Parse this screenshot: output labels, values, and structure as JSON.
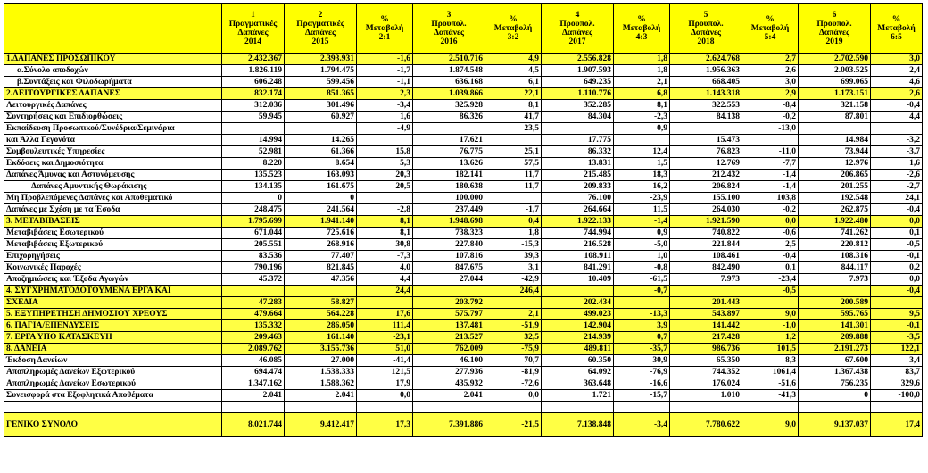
{
  "headers": [
    "",
    "1\nΠραγματικές\nΔαπάνες\n2014",
    "2\nΠραγματικές\nΔαπάνες\n2015",
    "%\nΜεταβολή\n2:1",
    "3\nΠρουπολ.\nΔαπάνες\n2016",
    "%\nΜεταβολή\n3:2",
    "4\nΠρουπολ.\nΔαπάνες\n2017",
    "%\nΜεταβολή\n4:3",
    "5\nΠρουπολ.\nΔαπάνες\n2018",
    "%\nΜεταβολή\n5:4",
    "6\nΠρουπολ.\nΔαπάνες\n2019",
    "%\nΜεταβολή\n6:5"
  ],
  "rows": [
    {
      "h": true,
      "c": [
        "1.ΔΑΠΑΝΕΣ ΠΡΟΣΩΠΙΚΟΥ",
        "2.432.367",
        "2.393.931",
        "-1,6",
        "2.510.716",
        "4,9",
        "2.556.828",
        "1,8",
        "2.624.768",
        "2,7",
        "2.702.590",
        "3,0"
      ]
    },
    {
      "ind": 1,
      "c": [
        "α.Σύνολο αποδοχών",
        "1.826.119",
        "1.794.475",
        "-1,7",
        "1.874.548",
        "4,5",
        "1.907.593",
        "1,8",
        "1.956.363",
        "2,6",
        "2.003.525",
        "2,4"
      ]
    },
    {
      "ind": 1,
      "c": [
        "β.Συντάξεις και Φιλοδωρήματα",
        "606.248",
        "599.456",
        "-1,1",
        "636.168",
        "6,1",
        "649.235",
        "2,1",
        "668.405",
        "3,0",
        "699.065",
        "4,6"
      ]
    },
    {
      "h": true,
      "c": [
        "2.ΛΕΙΤΟΥΡΓΙΚΕΣ ΔΑΠΑΝΕΣ",
        "832.174",
        "851.365",
        "2,3",
        "1.039.866",
        "22,1",
        "1.110.776",
        "6,8",
        "1.143.318",
        "2,9",
        "1.173.151",
        "2,6"
      ]
    },
    {
      "c": [
        "Λειτουργικές Δαπάνες",
        "312.036",
        "301.496",
        "-3,4",
        "325.928",
        "8,1",
        "352.285",
        "8,1",
        "322.553",
        "-8,4",
        "321.158",
        "-0,4"
      ]
    },
    {
      "c": [
        "Συντηρήσεις και Επιδιορθώσεις",
        "59.945",
        "60.927",
        "1,6",
        "86.326",
        "41,7",
        "84.304",
        "-2,3",
        "84.138",
        "-0,2",
        "87.801",
        "4,4"
      ]
    },
    {
      "c": [
        "Εκπαίδευση Προσωπικού/Συνέδρια/Σεμινάρια",
        "",
        "",
        "-4,9",
        "",
        "23,5",
        "",
        "0,9",
        "",
        "-13,0",
        "",
        ""
      ]
    },
    {
      "c": [
        "και Άλλα Γεγονότα",
        "14.994",
        "14.265",
        "",
        "17.621",
        "",
        "17.775",
        "",
        "15.473",
        "",
        "14.984",
        "-3,2"
      ]
    },
    {
      "c": [
        "Συμβουλευτικές Υπηρεσίες",
        "52.981",
        "61.366",
        "15,8",
        "76.775",
        "25,1",
        "86.332",
        "12,4",
        "76.823",
        "-11,0",
        "73.944",
        "-3,7"
      ]
    },
    {
      "c": [
        "Εκδόσεις και Δημοσιότητα",
        "8.220",
        "8.654",
        "5,3",
        "13.626",
        "57,5",
        "13.831",
        "1,5",
        "12.769",
        "-7,7",
        "12.976",
        "1,6"
      ]
    },
    {
      "c": [
        "Δαπάνες Άμυνας και Αστυνόμευσης",
        "135.523",
        "163.093",
        "20,3",
        "182.141",
        "11,7",
        "215.485",
        "18,3",
        "212.432",
        "-1,4",
        "206.865",
        "-2,6"
      ]
    },
    {
      "ind": 2,
      "c": [
        "Δαπάνες Αμυντικής Θωράκισης",
        "134.135",
        "161.675",
        "20,5",
        "180.638",
        "11,7",
        "209.833",
        "16,2",
        "206.824",
        "-1,4",
        "201.255",
        "-2,7"
      ]
    },
    {
      "c": [
        "Μη Προβλεπόμενες Δαπάνες και Αποθεματικό",
        "0",
        "0",
        "",
        "100.000",
        "",
        "76.100",
        "-23,9",
        "155.100",
        "103,8",
        "192.548",
        "24,1"
      ]
    },
    {
      "c": [
        "Δαπάνες με Σχέση με τα Έσοδα",
        "248.475",
        "241.564",
        "-2,8",
        "237.449",
        "-1,7",
        "264.664",
        "11,5",
        "264.030",
        "-0,2",
        "262.875",
        "-0,4"
      ]
    },
    {
      "h": true,
      "c": [
        "3. ΜΕΤΑΒΙΒΑΣΕΙΣ",
        "1.795.699",
        "1.941.140",
        "8,1",
        "1.948.698",
        "0,4",
        "1.922.133",
        "-1,4",
        "1.921.590",
        "0,0",
        "1.922.480",
        "0,0"
      ]
    },
    {
      "c": [
        "Μεταβιβάσεις Εσωτερικού",
        "671.044",
        "725.616",
        "8,1",
        "738.323",
        "1,8",
        "744.994",
        "0,9",
        "740.822",
        "-0,6",
        "741.262",
        "0,1"
      ]
    },
    {
      "c": [
        "Μεταβιβάσεις Εξωτερικού",
        "205.551",
        "268.916",
        "30,8",
        "227.840",
        "-15,3",
        "216.528",
        "-5,0",
        "221.844",
        "2,5",
        "220.812",
        "-0,5"
      ]
    },
    {
      "c": [
        "Επιχορηγήσεις",
        "83.536",
        "77.407",
        "-7,3",
        "107.816",
        "39,3",
        "108.911",
        "1,0",
        "108.461",
        "-0,4",
        "108.316",
        "-0,1"
      ]
    },
    {
      "c": [
        "Κοινωνικές Παροχές",
        "790.196",
        "821.845",
        "4,0",
        "847.675",
        "3,1",
        "841.291",
        "-0,8",
        "842.490",
        "0,1",
        "844.117",
        "0,2"
      ]
    },
    {
      "c": [
        "Αποζημιώσεις και Έξοδα Αγωγών",
        "45.372",
        "47.356",
        "4,4",
        "27.044",
        "-42,9",
        "10.409",
        "-61,5",
        "7.973",
        "-23,4",
        "7.973",
        "0,0"
      ]
    },
    {
      "h": true,
      "c": [
        "4. ΣΥΓΧΡΗΜΑΤΟΔΟΤΟΥΜΕΝΑ ΕΡΓΑ ΚΑΙ",
        "",
        "",
        "24,4",
        "",
        "246,4",
        "",
        "-0,7",
        "",
        "-0,5",
        "",
        "-0,4"
      ]
    },
    {
      "h": true,
      "c": [
        "ΣΧΕΔΙΑ",
        "47.283",
        "58.827",
        "",
        "203.792",
        "",
        "202.434",
        "",
        "201.443",
        "",
        "200.589",
        ""
      ]
    },
    {
      "h": true,
      "c": [
        "5. ΕΞΥΠΗΡΕΤΗΣΗ ΔΗΜΟΣΙΟΥ ΧΡΕΟΥΣ",
        "479.664",
        "564.228",
        "17,6",
        "575.797",
        "2,1",
        "499.023",
        "-13,3",
        "543.897",
        "9,0",
        "595.765",
        "9,5"
      ]
    },
    {
      "h": true,
      "c": [
        "6. ΠΑΓΙΑ/ΕΠΕΝΔΥΣΕΙΣ",
        "135.332",
        "286.050",
        "111,4",
        "137.481",
        "-51,9",
        "142.904",
        "3,9",
        "141.442",
        "-1,0",
        "141.301",
        "-0,1"
      ]
    },
    {
      "h": true,
      "c": [
        "7. ΕΡΓΑ ΥΠΟ ΚΑΤΑΣΚΕΥΗ",
        "209.463",
        "161.140",
        "-23,1",
        "213.527",
        "32,5",
        "214.939",
        "0,7",
        "217.428",
        "1,2",
        "209.888",
        "-3,5"
      ]
    },
    {
      "h": true,
      "c": [
        "8. ΔΑΝΕΙΑ",
        "2.089.762",
        "3.155.736",
        "51,0",
        "762.009",
        "-75,9",
        "489.811",
        "-35,7",
        "986.736",
        "101,5",
        "2.191.273",
        "122,1"
      ]
    },
    {
      "c": [
        "Έκδοση Δανείων",
        "46.085",
        "27.000",
        "-41,4",
        "46.100",
        "70,7",
        "60.350",
        "30,9",
        "65.350",
        "8,3",
        "67.600",
        "3,4"
      ]
    },
    {
      "c": [
        "Αποπληρωμές Δανείων Εξωτερικού",
        "694.474",
        "1.538.333",
        "121,5",
        "277.936",
        "-81,9",
        "64.092",
        "-76,9",
        "744.352",
        "1061,4",
        "1.367.438",
        "83,7"
      ]
    },
    {
      "c": [
        "Αποπληρωμές Δανείων Εσωτερικού",
        "1.347.162",
        "1.588.362",
        "17,9",
        "435.932",
        "-72,6",
        "363.648",
        "-16,6",
        "176.024",
        "-51,6",
        "756.235",
        "329,6"
      ]
    },
    {
      "c": [
        "Συνεισφορά στα Εξοφλητικά Αποθέματα",
        "2.041",
        "2.041",
        "0,0",
        "2.041",
        "0,0",
        "1.721",
        "-15,7",
        "1.010",
        "-41,3",
        "0",
        "-100,0"
      ]
    }
  ],
  "total": [
    "ΓΕΝΙΚΟ ΣΥΝΟΛΟ",
    "8.021.744",
    "9.412.417",
    "17,3",
    "7.391.886",
    "-21,5",
    "7.138.848",
    "-3,4",
    "7.780.622",
    "9,0",
    "9.137.037",
    "17,4"
  ]
}
